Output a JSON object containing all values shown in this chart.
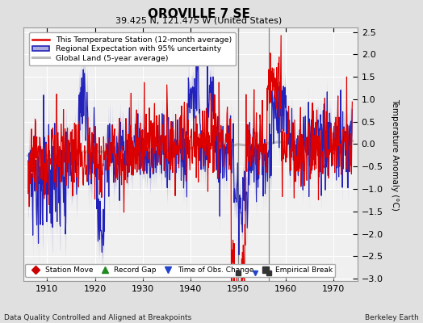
{
  "title": "OROVILLE 7 SE",
  "subtitle": "39.425 N, 121.475 W (United States)",
  "ylabel": "Temperature Anomaly (°C)",
  "footer_left": "Data Quality Controlled and Aligned at Breakpoints",
  "footer_right": "Berkeley Earth",
  "xlim": [
    1905,
    1975
  ],
  "ylim": [
    -3.05,
    2.6
  ],
  "yticks": [
    -3,
    -2.5,
    -2,
    -1.5,
    -1,
    -0.5,
    0,
    0.5,
    1,
    1.5,
    2,
    2.5
  ],
  "xticks": [
    1910,
    1920,
    1930,
    1940,
    1950,
    1960,
    1970
  ],
  "bg_color": "#e0e0e0",
  "plot_bg_color": "#f0f0f0",
  "grid_color": "#ffffff",
  "station_color": "#dd0000",
  "regional_color": "#2222bb",
  "regional_band_color": "#aaaadd",
  "global_color": "#bbbbbb",
  "legend_entries": [
    {
      "label": "This Temperature Station (12-month average)",
      "color": "#dd0000",
      "lw": 1.5
    },
    {
      "label": "Regional Expectation with 95% uncertainty",
      "color": "#2222bb",
      "lw": 1.5
    },
    {
      "label": "Global Land (5-year average)",
      "color": "#bbbbbb",
      "lw": 2.0
    }
  ],
  "marker_legend": [
    {
      "label": "Station Move",
      "color": "#cc0000",
      "marker": "D"
    },
    {
      "label": "Record Gap",
      "color": "#228822",
      "marker": "^"
    },
    {
      "label": "Time of Obs. Change",
      "color": "#2244cc",
      "marker": "v"
    },
    {
      "label": "Empirical Break",
      "color": "#333333",
      "marker": "s"
    }
  ],
  "event_markers": [
    {
      "year": 1950.0,
      "color": "#333333",
      "marker": "s"
    },
    {
      "year": 1953.5,
      "color": "#2244cc",
      "marker": "v"
    },
    {
      "year": 1956.5,
      "color": "#333333",
      "marker": "s"
    }
  ],
  "event_vlines": [
    1950.0,
    1956.5
  ],
  "seed": 12
}
